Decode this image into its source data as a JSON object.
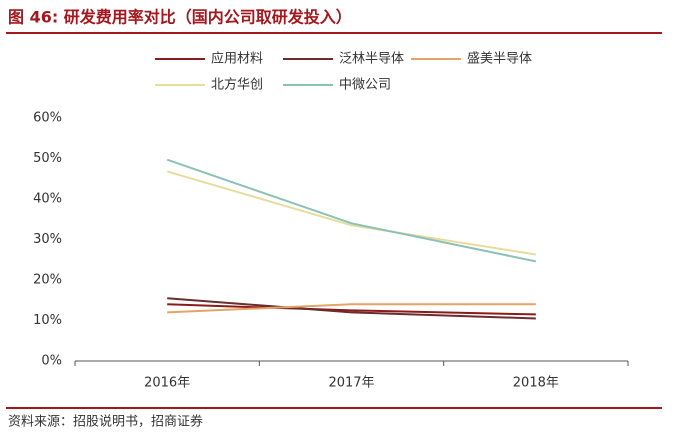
{
  "chart_data": {
    "type": "line",
    "title": "图 46: 研发费用率对比（国内公司取研发投入）",
    "source": "资料来源：招股说明书，招商证券",
    "categories": [
      "2016年",
      "2017年",
      "2018年"
    ],
    "series": [
      {
        "name": "应用材料",
        "color": "#8b1a1a",
        "values": [
          14,
          12.5,
          11.5
        ]
      },
      {
        "name": "泛林半导体",
        "color": "#6e2b2b",
        "values": [
          15.5,
          12,
          10.5
        ]
      },
      {
        "name": "盛美半导体",
        "color": "#e3a466",
        "values": [
          12,
          14,
          14
        ]
      },
      {
        "name": "北方华创",
        "color": "#e6dc9c",
        "values": [
          46.8,
          33.5,
          26.3
        ]
      },
      {
        "name": "中微公司",
        "color": "#8cc1b6",
        "values": [
          49.7,
          34,
          24.6
        ]
      }
    ],
    "ylim": [
      0,
      60
    ],
    "yticks": [
      {
        "value": 0,
        "label": "0%"
      },
      {
        "value": 10,
        "label": "10%"
      },
      {
        "value": 20,
        "label": "20%"
      },
      {
        "value": 30,
        "label": "30%"
      },
      {
        "value": 40,
        "label": "40%"
      },
      {
        "value": 50,
        "label": "50%"
      },
      {
        "value": 60,
        "label": "60%"
      }
    ],
    "grid": false
  }
}
